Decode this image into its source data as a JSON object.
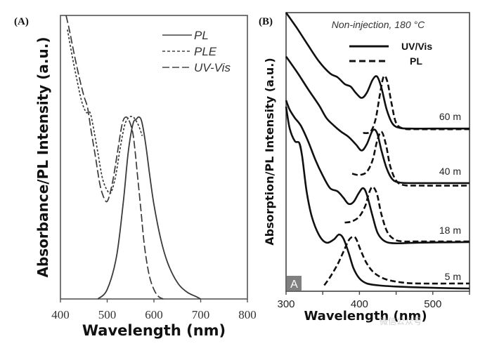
{
  "chart_data": [
    {
      "panel_label": "(A)",
      "type": "line",
      "xlabel": "Wavelength (nm)",
      "ylabel": "Absorbance/PL Intensity (a.u.)",
      "xlim": [
        400,
        800
      ],
      "ylim": [
        0,
        1.2
      ],
      "xticks": [
        "400",
        "500",
        "600",
        "700",
        "800"
      ],
      "grid": false,
      "legend_position": "top-right",
      "series": [
        {
          "name": "PL",
          "style": "solid",
          "x": [
            480,
            500,
            520,
            535,
            545,
            555,
            562,
            568,
            574,
            582,
            590,
            600,
            615,
            630,
            650,
            670,
            690,
            700
          ],
          "y": [
            0.0,
            0.04,
            0.18,
            0.42,
            0.62,
            0.74,
            0.76,
            0.77,
            0.75,
            0.66,
            0.54,
            0.4,
            0.25,
            0.15,
            0.07,
            0.03,
            0.01,
            0.0
          ]
        },
        {
          "name": "PLE",
          "style": "dotted",
          "x": [
            415,
            425,
            435,
            445,
            455,
            463,
            470,
            480,
            490,
            500,
            508,
            518,
            528,
            538,
            548,
            555,
            560,
            568,
            575
          ],
          "y": [
            1.14,
            1.03,
            0.93,
            0.84,
            0.79,
            0.79,
            0.73,
            0.62,
            0.51,
            0.46,
            0.45,
            0.52,
            0.64,
            0.74,
            0.77,
            0.77,
            0.76,
            0.73,
            0.69
          ]
        },
        {
          "name": "UV-Vis",
          "style": "dashed",
          "x": [
            412,
            420,
            430,
            440,
            450,
            458,
            465,
            475,
            485,
            495,
            502,
            512,
            522,
            532,
            540,
            548,
            555,
            560,
            565,
            572,
            580,
            590,
            600,
            610,
            620
          ],
          "y": [
            1.2,
            1.13,
            1.03,
            0.94,
            0.86,
            0.81,
            0.72,
            0.6,
            0.48,
            0.42,
            0.42,
            0.5,
            0.62,
            0.74,
            0.77,
            0.75,
            0.7,
            0.62,
            0.52,
            0.38,
            0.22,
            0.1,
            0.04,
            0.01,
            0.0
          ]
        }
      ]
    },
    {
      "panel_label": "(B)",
      "type": "line",
      "annotation": "Non-injection, 180 °C",
      "xlabel": "Wavelength (nm)",
      "ylabel": "Absorption/PL Intensity (a.u.)",
      "xlim": [
        300,
        550
      ],
      "ylim": [
        0,
        4.4
      ],
      "xticks": [
        "300",
        "400",
        "500"
      ],
      "grid": false,
      "legend_position": "top-center",
      "corner_badge": "A",
      "series": [
        {
          "name": "UV/Vis 60 m",
          "style": "solid",
          "label": "60 m",
          "x": [
            300,
            315,
            330,
            345,
            360,
            370,
            380,
            388,
            395,
            403,
            410,
            418,
            424,
            430,
            437,
            445,
            455,
            470,
            500,
            550
          ],
          "y": [
            4.4,
            4.15,
            3.88,
            3.62,
            3.43,
            3.37,
            3.26,
            3.22,
            3.12,
            3.04,
            3.12,
            3.33,
            3.38,
            3.2,
            2.86,
            2.63,
            2.56,
            2.55,
            2.55,
            2.55
          ]
        },
        {
          "name": "PL 60 m",
          "style": "dashed",
          "x": [
            405,
            415,
            422,
            428,
            433,
            438,
            444,
            450,
            460,
            480,
            550
          ],
          "y": [
            2.48,
            2.5,
            2.7,
            3.1,
            3.38,
            3.3,
            2.94,
            2.64,
            2.55,
            2.54,
            2.54
          ]
        },
        {
          "name": "UV/Vis 40 m",
          "style": "solid",
          "label": "40 m",
          "x": [
            300,
            315,
            330,
            345,
            355,
            365,
            375,
            385,
            395,
            403,
            410,
            418,
            424,
            430,
            437,
            445,
            455,
            470,
            500,
            550
          ],
          "y": [
            3.7,
            3.45,
            3.18,
            2.92,
            2.72,
            2.6,
            2.5,
            2.42,
            2.3,
            2.2,
            2.3,
            2.52,
            2.48,
            2.2,
            1.92,
            1.74,
            1.69,
            1.68,
            1.68,
            1.68
          ]
        },
        {
          "name": "PL 40 m",
          "style": "dashed",
          "x": [
            390,
            400,
            410,
            418,
            424,
            430,
            436,
            442,
            450,
            460,
            480,
            550
          ],
          "y": [
            1.83,
            1.81,
            1.86,
            2.05,
            2.35,
            2.5,
            2.3,
            1.95,
            1.72,
            1.65,
            1.64,
            1.64
          ]
        },
        {
          "name": "UV/Vis 18 m",
          "style": "solid",
          "label": "18 m",
          "x": [
            300,
            305,
            312,
            320,
            330,
            340,
            350,
            360,
            370,
            378,
            385,
            392,
            399,
            405,
            410,
            418,
            425,
            435,
            450,
            480,
            550
          ],
          "y": [
            3.0,
            2.85,
            2.72,
            2.6,
            2.35,
            2.05,
            1.8,
            1.6,
            1.55,
            1.45,
            1.35,
            1.38,
            1.52,
            1.6,
            1.5,
            1.15,
            0.88,
            0.75,
            0.72,
            0.73,
            0.74
          ]
        },
        {
          "name": "PL 18 m",
          "style": "dashed",
          "x": [
            380,
            390,
            400,
            408,
            413,
            418,
            424,
            430,
            438,
            448,
            460,
            480,
            550
          ],
          "y": [
            1.05,
            1.07,
            1.15,
            1.32,
            1.52,
            1.62,
            1.5,
            1.18,
            0.9,
            0.78,
            0.75,
            0.75,
            0.75
          ]
        },
        {
          "name": "UV/Vis 5 m",
          "style": "solid",
          "label": "5 m",
          "x": [
            300,
            305,
            312,
            318,
            322,
            328,
            335,
            345,
            355,
            365,
            372,
            378,
            385,
            392,
            400,
            410,
            425,
            450,
            500,
            550
          ],
          "y": [
            2.9,
            2.55,
            2.35,
            2.32,
            2.1,
            1.55,
            1.15,
            0.85,
            0.73,
            0.78,
            0.86,
            0.8,
            0.58,
            0.32,
            0.16,
            0.08,
            0.05,
            0.03,
            0.01,
            0.0
          ]
        },
        {
          "name": "PL 5 m",
          "style": "dashed",
          "x": [
            352,
            360,
            370,
            378,
            385,
            390,
            395,
            402,
            410,
            420,
            435,
            455,
            480,
            550
          ],
          "y": [
            0.05,
            0.18,
            0.38,
            0.58,
            0.76,
            0.82,
            0.8,
            0.6,
            0.4,
            0.25,
            0.15,
            0.1,
            0.08,
            0.08
          ]
        }
      ]
    }
  ],
  "watermark": "微信公众号"
}
